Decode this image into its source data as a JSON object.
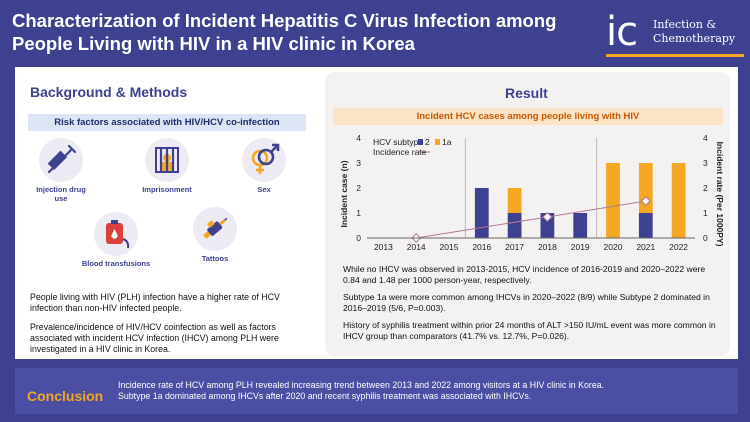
{
  "header": {
    "title": "Characterization of Incident Hepatitis C Virus Infection among People Living with HIV in a HIV clinic in Korea",
    "logo_mark": "ic",
    "logo_line1": "Infection &",
    "logo_line2": "Chemotherapy"
  },
  "background": {
    "heading": "Background & Methods",
    "risk_heading": "Risk factors associated with HIV/HCV co-infection",
    "risks": [
      {
        "label": "Injection drug use",
        "icon": "syringe-icon"
      },
      {
        "label": "Imprisonment",
        "icon": "prison-icon"
      },
      {
        "label": "Sex",
        "icon": "gender-icon"
      },
      {
        "label": "Blood transfusions",
        "icon": "blood-bag-icon"
      },
      {
        "label": "Tattoos",
        "icon": "tattoo-machine-icon"
      }
    ],
    "para1": "People living with HIV (PLH) infection have a higher rate of HCV infection than non-HIV infected people.",
    "para2": "Prevalence/incidence of HIV/HCV coinfection as well as  factors associated with incident HCV infection (IHCV) among PLH were investigated in a HIV clinic in Korea."
  },
  "result": {
    "heading": "Result",
    "chart_heading": "Incident HCV cases among people living with HIV",
    "para1": "While no IHCV was observed in 2013-2015, HCV incidence of 2016-2019 and 2020–2022 were 0.84 and 1.48 per 1000 person-year, respectively.",
    "para2": "Subtype 1a were more common among IHCVs in 2020–2022 (8/9) while Subtype 2 dominated in 2016–2019 (5/6, P=0.003).",
    "para3": "History of syphilis treatment within prior 24 months of ALT >150 IU/mL event was more common in IHCV group than comparators (41.7% vs. 12.7%, P=0.026)."
  },
  "conclusion": {
    "label": "Conclusion",
    "text": "Incidence rate of HCV among PLH revealed increasing trend between 2013 and 2022 among visitors at a HIV clinic in Korea. Subtype 1a dominated among IHCVs after 2020 and recent syphilis treatment was associated with IHCVs."
  },
  "chart_data": {
    "type": "bar",
    "stacked": true,
    "categories": [
      "2013",
      "2014",
      "2015",
      "2016",
      "2017",
      "2018",
      "2019",
      "2020",
      "2021",
      "2022"
    ],
    "series": [
      {
        "name": "2",
        "color": "#3d4190",
        "values": [
          0,
          0,
          0,
          2,
          1,
          1,
          1,
          0,
          1,
          0
        ]
      },
      {
        "name": "1a",
        "color": "#f5a623",
        "values": [
          0,
          0,
          0,
          0,
          1,
          0,
          0,
          3,
          2,
          3
        ]
      }
    ],
    "line": {
      "name": "Incidence rate",
      "color": "#b07a95",
      "x": [
        "2014",
        "2018",
        "2021"
      ],
      "values": [
        0,
        0.84,
        1.48
      ]
    },
    "legend_title": "HCV subtype",
    "legend_position": "top-left",
    "ylabel_left": "Incident case (n)",
    "ylabel_right": "Incident rate (Per 1000PY)",
    "ylim_left": [
      0,
      4
    ],
    "ylim_right": [
      0,
      4
    ],
    "yticks": [
      0,
      1,
      2,
      3,
      4
    ],
    "period_dividers": [
      "2015.5",
      "2019.5"
    ]
  }
}
